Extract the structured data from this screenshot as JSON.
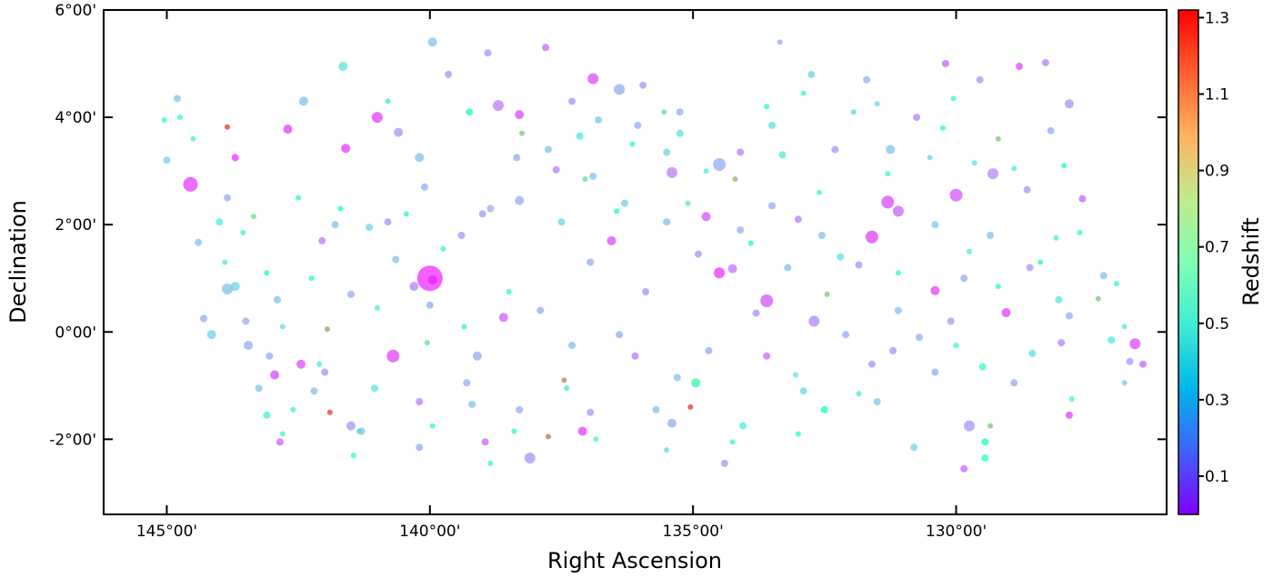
{
  "chart_data": {
    "type": "scatter",
    "xlabel": "Right Ascension",
    "ylabel": "Declination",
    "colorbar_label": "Redshift",
    "xlim": [
      146.2,
      126.0
    ],
    "ylim": [
      -3.4,
      6.0
    ],
    "x_ticks": [
      {
        "value": 145,
        "label": "145°00'"
      },
      {
        "value": 140,
        "label": "140°00'"
      },
      {
        "value": 135,
        "label": "135°00'"
      },
      {
        "value": 130,
        "label": "130°00'"
      }
    ],
    "y_ticks": [
      {
        "value": 6,
        "label": "6°00'"
      },
      {
        "value": 4,
        "label": "4°00'"
      },
      {
        "value": 2,
        "label": "2°00'"
      },
      {
        "value": 0,
        "label": "0°00'"
      },
      {
        "value": -2,
        "label": "-2°00'"
      }
    ],
    "colorbar": {
      "range": [
        0.0,
        1.32
      ],
      "ticks": [
        {
          "value": 1.3,
          "label": "1.3"
        },
        {
          "value": 1.1,
          "label": "1.1"
        },
        {
          "value": 0.9,
          "label": "0.9"
        },
        {
          "value": 0.7,
          "label": "0.7"
        },
        {
          "value": 0.5,
          "label": "0.5"
        },
        {
          "value": 0.3,
          "label": "0.3"
        },
        {
          "value": 0.1,
          "label": "0.1"
        }
      ],
      "colormap": "rainbow"
    },
    "point_fields": [
      "ra_deg",
      "dec_deg",
      "redshift",
      "marker_size"
    ],
    "points": [
      [
        140.0,
        1.0,
        0.05,
        14
      ],
      [
        139.95,
        0.97,
        0.03,
        5
      ],
      [
        144.55,
        2.75,
        0.08,
        8
      ],
      [
        141.0,
        4.0,
        0.08,
        6
      ],
      [
        142.7,
        3.78,
        0.07,
        5
      ],
      [
        141.6,
        3.42,
        0.07,
        5
      ],
      [
        143.7,
        3.25,
        0.06,
        4
      ],
      [
        140.7,
        -0.45,
        0.09,
        7
      ],
      [
        142.95,
        -0.8,
        0.1,
        5
      ],
      [
        142.45,
        -0.6,
        0.11,
        5
      ],
      [
        142.85,
        -2.05,
        0.15,
        4
      ],
      [
        138.1,
        -2.35,
        0.25,
        6
      ],
      [
        137.1,
        -1.85,
        0.08,
        5
      ],
      [
        136.9,
        4.72,
        0.1,
        6
      ],
      [
        138.7,
        4.22,
        0.2,
        6
      ],
      [
        138.3,
        4.05,
        0.1,
        5
      ],
      [
        136.4,
        4.52,
        0.3,
        6
      ],
      [
        139.95,
        5.4,
        0.35,
        5
      ],
      [
        140.2,
        3.25,
        0.35,
        5
      ],
      [
        139.0,
        2.2,
        0.25,
        4
      ],
      [
        134.5,
        3.12,
        0.3,
        7
      ],
      [
        135.4,
        2.97,
        0.2,
        6
      ],
      [
        134.25,
        1.18,
        0.18,
        5
      ],
      [
        134.5,
        1.1,
        0.06,
        6
      ],
      [
        133.6,
        0.58,
        0.12,
        7
      ],
      [
        131.3,
        2.42,
        0.1,
        7
      ],
      [
        131.6,
        1.77,
        0.08,
        7
      ],
      [
        130.0,
        2.55,
        0.12,
        7
      ],
      [
        131.1,
        2.25,
        0.15,
        6
      ],
      [
        129.3,
        2.95,
        0.22,
        6
      ],
      [
        129.05,
        0.36,
        0.08,
        5
      ],
      [
        129.75,
        -1.75,
        0.25,
        6
      ],
      [
        127.85,
        4.25,
        0.25,
        5
      ],
      [
        128.3,
        5.02,
        0.2,
        4
      ],
      [
        126.6,
        -0.22,
        0.1,
        6
      ],
      [
        127.85,
        -1.55,
        0.08,
        4
      ],
      [
        132.7,
        0.2,
        0.22,
        6
      ],
      [
        135.4,
        -1.7,
        0.3,
        5
      ],
      [
        139.1,
        -0.45,
        0.3,
        5
      ],
      [
        138.6,
        0.27,
        0.15,
        5
      ],
      [
        134.75,
        2.15,
        0.12,
        5
      ],
      [
        136.55,
        1.7,
        0.1,
        5
      ],
      [
        133.6,
        -0.45,
        0.15,
        4
      ],
      [
        132.3,
        3.4,
        0.25,
        4
      ],
      [
        130.4,
        0.77,
        0.08,
        5
      ],
      [
        141.5,
        -1.75,
        0.25,
        5
      ],
      [
        141.5,
        0.7,
        0.3,
        4
      ],
      [
        137.6,
        3.02,
        0.2,
        4
      ],
      [
        136.4,
        -0.05,
        0.3,
        4
      ],
      [
        144.8,
        4.35,
        0.35,
        4
      ],
      [
        143.45,
        -0.25,
        0.3,
        5
      ],
      [
        142.05,
        1.7,
        0.2,
        4
      ],
      [
        140.8,
        2.05,
        0.25,
        4
      ],
      [
        139.65,
        4.8,
        0.25,
        4
      ],
      [
        138.9,
        5.2,
        0.25,
        4
      ],
      [
        137.8,
        5.3,
        0.15,
        4
      ],
      [
        135.95,
        4.6,
        0.25,
        4
      ],
      [
        134.1,
        3.35,
        0.2,
        4
      ],
      [
        133.5,
        2.35,
        0.3,
        4
      ],
      [
        132.75,
        4.8,
        0.4,
        4
      ],
      [
        131.7,
        4.7,
        0.3,
        4
      ],
      [
        130.75,
        4.0,
        0.2,
        4
      ],
      [
        130.2,
        5.0,
        0.15,
        4
      ],
      [
        129.55,
        4.7,
        0.25,
        4
      ],
      [
        128.8,
        4.95,
        0.1,
        4
      ],
      [
        127.6,
        2.48,
        0.15,
        4
      ],
      [
        127.2,
        1.05,
        0.35,
        4
      ],
      [
        126.45,
        -0.6,
        0.15,
        4
      ],
      [
        129.85,
        -2.55,
        0.15,
        4
      ],
      [
        129.45,
        -2.35,
        0.6,
        4
      ],
      [
        130.8,
        -2.15,
        0.4,
        4
      ],
      [
        132.5,
        -1.45,
        0.65,
        4
      ],
      [
        134.4,
        -2.45,
        0.25,
        4
      ],
      [
        136.95,
        -1.5,
        0.25,
        4
      ],
      [
        138.95,
        -2.05,
        0.15,
        4
      ],
      [
        141.3,
        -1.85,
        0.35,
        4
      ],
      [
        143.25,
        -1.05,
        0.35,
        4
      ],
      [
        144.3,
        0.25,
        0.3,
        4
      ],
      [
        145.0,
        3.2,
        0.4,
        4
      ],
      [
        144.4,
        1.67,
        0.35,
        4
      ],
      [
        143.85,
        2.5,
        0.3,
        4
      ],
      [
        141.65,
        4.95,
        0.45,
        5
      ],
      [
        142.4,
        4.3,
        0.35,
        5
      ],
      [
        140.6,
        3.72,
        0.25,
        5
      ],
      [
        140.1,
        2.7,
        0.3,
        4
      ],
      [
        138.85,
        2.3,
        0.3,
        4
      ],
      [
        137.5,
        2.05,
        0.4,
        4
      ],
      [
        136.3,
        2.4,
        0.4,
        4
      ],
      [
        135.25,
        3.7,
        0.45,
        4
      ],
      [
        133.3,
        3.3,
        0.5,
        4
      ],
      [
        133.0,
        2.1,
        0.2,
        4
      ],
      [
        132.2,
        1.4,
        0.45,
        4
      ],
      [
        131.25,
        3.4,
        0.35,
        5
      ],
      [
        130.4,
        2.0,
        0.4,
        4
      ],
      [
        129.85,
        1.0,
        0.3,
        4
      ],
      [
        128.6,
        1.2,
        0.25,
        4
      ],
      [
        128.05,
        0.6,
        0.45,
        4
      ],
      [
        127.05,
        -0.15,
        0.5,
        4
      ],
      [
        126.7,
        -0.55,
        0.25,
        4
      ],
      [
        128.55,
        -0.4,
        0.45,
        4
      ],
      [
        129.5,
        -0.65,
        0.55,
        4
      ],
      [
        130.7,
        -0.1,
        0.3,
        4
      ],
      [
        131.6,
        -0.6,
        0.25,
        4
      ],
      [
        132.9,
        -1.1,
        0.4,
        4
      ],
      [
        134.05,
        -1.75,
        0.5,
        4
      ],
      [
        135.3,
        -0.85,
        0.35,
        4
      ],
      [
        136.1,
        -0.45,
        0.2,
        4
      ],
      [
        137.3,
        -0.25,
        0.35,
        4
      ],
      [
        138.3,
        -1.45,
        0.3,
        4
      ],
      [
        139.2,
        -1.35,
        0.35,
        4
      ],
      [
        140.2,
        -1.3,
        0.2,
        4
      ],
      [
        141.05,
        -1.05,
        0.45,
        4
      ],
      [
        142.2,
        -1.1,
        0.35,
        4
      ],
      [
        143.1,
        -1.55,
        0.5,
        4
      ],
      [
        133.35,
        5.4,
        0.3,
        3
      ],
      [
        135.25,
        4.1,
        0.3,
        4
      ],
      [
        137.15,
        3.65,
        0.5,
        4
      ],
      [
        136.15,
        3.5,
        0.6,
        3
      ],
      [
        134.75,
        3.0,
        0.5,
        3
      ],
      [
        132.6,
        2.6,
        0.55,
        3
      ],
      [
        131.3,
        2.95,
        0.55,
        3
      ],
      [
        130.5,
        3.25,
        0.4,
        3
      ],
      [
        128.9,
        3.05,
        0.45,
        3
      ],
      [
        127.95,
        3.1,
        0.7,
        3
      ],
      [
        127.65,
        1.85,
        0.6,
        3
      ],
      [
        127.3,
        0.62,
        0.95,
        3
      ],
      [
        126.8,
        -0.95,
        0.35,
        3
      ],
      [
        127.8,
        -1.25,
        0.55,
        3
      ],
      [
        129.35,
        -1.75,
        0.95,
        3
      ],
      [
        129.45,
        -2.05,
        0.65,
        4
      ],
      [
        131.5,
        -1.3,
        0.35,
        4
      ],
      [
        133.05,
        -0.8,
        0.45,
        3
      ],
      [
        134.95,
        -0.95,
        0.75,
        5
      ],
      [
        135.7,
        -1.45,
        0.35,
        4
      ],
      [
        137.45,
        -0.9,
        1.1,
        3
      ],
      [
        137.4,
        -1.05,
        0.8,
        3
      ],
      [
        138.85,
        -2.45,
        0.55,
        3
      ],
      [
        137.75,
        -1.95,
        1.15,
        3
      ],
      [
        135.05,
        -1.4,
        1.25,
        3
      ],
      [
        141.9,
        -1.5,
        1.25,
        3
      ],
      [
        141.95,
        0.05,
        1.05,
        3
      ],
      [
        143.35,
        2.15,
        0.85,
        3
      ],
      [
        143.85,
        3.82,
        1.25,
        3
      ],
      [
        139.75,
        1.55,
        0.75,
        3
      ],
      [
        140.45,
        2.2,
        0.75,
        3
      ],
      [
        139.25,
        4.1,
        0.65,
        4
      ],
      [
        141.7,
        2.3,
        0.65,
        3
      ],
      [
        142.5,
        2.5,
        0.6,
        3
      ],
      [
        143.1,
        1.1,
        0.65,
        3
      ],
      [
        142.8,
        -1.9,
        0.5,
        3
      ],
      [
        141.35,
        -1.85,
        0.8,
        3
      ],
      [
        140.8,
        4.3,
        0.8,
        3
      ],
      [
        138.25,
        3.7,
        0.95,
        3
      ],
      [
        137.05,
        2.85,
        0.85,
        3
      ],
      [
        136.45,
        2.25,
        0.65,
        3
      ],
      [
        135.1,
        2.4,
        0.5,
        3
      ],
      [
        133.9,
        1.65,
        0.7,
        3
      ],
      [
        132.45,
        0.7,
        0.95,
        3
      ],
      [
        131.1,
        1.1,
        0.6,
        3
      ],
      [
        129.75,
        1.5,
        0.5,
        3
      ],
      [
        129.2,
        3.6,
        0.95,
        3
      ],
      [
        128.4,
        1.3,
        0.75,
        3
      ],
      [
        130.25,
        3.8,
        0.6,
        3
      ],
      [
        131.95,
        4.1,
        0.85,
        3
      ],
      [
        133.6,
        4.2,
        0.7,
        3
      ],
      [
        134.2,
        2.85,
        1.0,
        3
      ],
      [
        135.55,
        4.1,
        0.85,
        3
      ],
      [
        138.5,
        0.75,
        0.6,
        3
      ],
      [
        139.35,
        0.1,
        0.75,
        3
      ],
      [
        140.05,
        -0.2,
        0.85,
        3
      ],
      [
        141.0,
        0.45,
        0.5,
        3
      ],
      [
        142.1,
        -0.6,
        0.55,
        3
      ],
      [
        142.8,
        0.1,
        0.4,
        3
      ],
      [
        143.9,
        1.3,
        0.5,
        3
      ],
      [
        144.75,
        4.0,
        0.55,
        3
      ],
      [
        142.25,
        1.0,
        0.65,
        3
      ],
      [
        144.0,
        2.05,
        0.5,
        4
      ],
      [
        144.15,
        -0.05,
        0.4,
        5
      ],
      [
        143.85,
        0.8,
        0.35,
        6
      ],
      [
        142.9,
        0.6,
        0.35,
        4
      ],
      [
        143.7,
        0.85,
        0.4,
        5
      ],
      [
        141.8,
        2.0,
        0.35,
        4
      ],
      [
        141.15,
        1.95,
        0.4,
        4
      ],
      [
        140.65,
        1.35,
        0.35,
        4
      ],
      [
        140.0,
        0.5,
        0.3,
        4
      ],
      [
        139.4,
        1.8,
        0.25,
        4
      ],
      [
        138.35,
        3.25,
        0.3,
        4
      ],
      [
        137.75,
        3.4,
        0.35,
        4
      ],
      [
        137.3,
        4.3,
        0.25,
        4
      ],
      [
        136.8,
        3.95,
        0.35,
        4
      ],
      [
        136.05,
        3.85,
        0.3,
        4
      ],
      [
        135.5,
        2.05,
        0.35,
        4
      ],
      [
        134.9,
        1.45,
        0.25,
        4
      ],
      [
        134.1,
        1.9,
        0.3,
        4
      ],
      [
        133.2,
        1.2,
        0.35,
        4
      ],
      [
        132.55,
        1.8,
        0.35,
        4
      ],
      [
        131.85,
        1.25,
        0.25,
        4
      ],
      [
        131.1,
        0.4,
        0.35,
        4
      ],
      [
        130.1,
        0.2,
        0.25,
        4
      ],
      [
        129.35,
        1.8,
        0.35,
        4
      ],
      [
        128.65,
        2.65,
        0.25,
        4
      ],
      [
        128.2,
        3.75,
        0.3,
        4
      ],
      [
        127.85,
        0.3,
        0.3,
        4
      ],
      [
        128.0,
        -0.2,
        0.2,
        4
      ],
      [
        128.9,
        -0.95,
        0.3,
        4
      ],
      [
        130.4,
        -0.75,
        0.3,
        4
      ],
      [
        131.2,
        -0.35,
        0.25,
        4
      ],
      [
        132.1,
        -0.05,
        0.3,
        4
      ],
      [
        133.8,
        0.35,
        0.25,
        4
      ],
      [
        134.7,
        -0.35,
        0.3,
        4
      ],
      [
        135.9,
        0.75,
        0.25,
        4
      ],
      [
        136.95,
        1.3,
        0.3,
        4
      ],
      [
        137.9,
        0.4,
        0.3,
        4
      ],
      [
        139.3,
        -0.95,
        0.3,
        4
      ],
      [
        140.2,
        -2.15,
        0.3,
        4
      ],
      [
        142.0,
        -0.75,
        0.25,
        4
      ],
      [
        143.05,
        -0.45,
        0.3,
        4
      ],
      [
        143.5,
        0.2,
        0.3,
        4
      ],
      [
        140.3,
        0.85,
        0.2,
        5
      ],
      [
        138.3,
        2.45,
        0.3,
        5
      ],
      [
        136.9,
        2.9,
        0.35,
        4
      ],
      [
        135.5,
        3.35,
        0.4,
        4
      ],
      [
        133.5,
        3.85,
        0.45,
        4
      ],
      [
        132.9,
        4.45,
        0.55,
        3
      ],
      [
        131.5,
        4.25,
        0.45,
        3
      ],
      [
        130.05,
        4.35,
        0.55,
        3
      ],
      [
        129.65,
        3.15,
        0.45,
        3
      ],
      [
        128.1,
        1.75,
        0.5,
        3
      ],
      [
        126.95,
        0.9,
        0.55,
        3
      ],
      [
        126.8,
        0.1,
        0.45,
        3
      ],
      [
        129.2,
        0.85,
        0.6,
        3
      ],
      [
        130.0,
        -0.25,
        0.55,
        3
      ],
      [
        131.85,
        -1.15,
        0.55,
        3
      ],
      [
        133.0,
        -1.9,
        0.6,
        3
      ],
      [
        134.25,
        -2.05,
        0.55,
        3
      ],
      [
        135.5,
        -2.2,
        0.4,
        3
      ],
      [
        136.85,
        -2.0,
        0.5,
        3
      ],
      [
        138.4,
        -1.85,
        0.6,
        3
      ],
      [
        139.95,
        -1.75,
        0.55,
        3
      ],
      [
        141.45,
        -2.3,
        0.55,
        3
      ],
      [
        142.6,
        -1.45,
        0.55,
        3
      ],
      [
        143.55,
        1.85,
        0.55,
        3
      ],
      [
        144.5,
        3.6,
        0.5,
        3
      ],
      [
        145.05,
        3.95,
        0.6,
        3
      ]
    ]
  }
}
